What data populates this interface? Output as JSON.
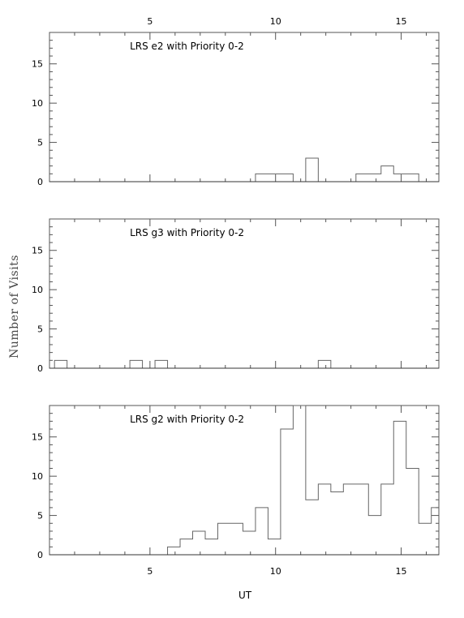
{
  "chart_data": [
    {
      "type": "histogram",
      "title": "LRS e2 with Priority 0-2",
      "xlim": [
        1,
        16.5
      ],
      "ylim": [
        0,
        19
      ],
      "xticks": [
        5,
        10,
        15
      ],
      "yticks": [
        0,
        5,
        10,
        15
      ],
      "bin_width": 0.5,
      "bins": [
        [
          9.2,
          1
        ],
        [
          9.7,
          1
        ],
        [
          10.2,
          1
        ],
        [
          11.2,
          3
        ],
        [
          13.2,
          1
        ],
        [
          13.7,
          1
        ],
        [
          14.2,
          2
        ],
        [
          14.7,
          1
        ],
        [
          15.2,
          1
        ]
      ]
    },
    {
      "type": "histogram",
      "title": "LRS g3 with Priority 0-2",
      "xlim": [
        1,
        16.5
      ],
      "ylim": [
        0,
        19
      ],
      "xticks": [
        5,
        10,
        15
      ],
      "yticks": [
        0,
        5,
        10,
        15
      ],
      "bin_width": 0.5,
      "bins": [
        [
          1.2,
          1
        ],
        [
          4.2,
          1
        ],
        [
          5.2,
          1
        ],
        [
          11.7,
          1
        ]
      ]
    },
    {
      "type": "histogram",
      "title": "LRS g2 with Priority 0-2",
      "xlim": [
        1,
        16.5
      ],
      "ylim": [
        0,
        19
      ],
      "xticks": [
        5,
        10,
        15
      ],
      "yticks": [
        0,
        5,
        10,
        15
      ],
      "bin_width": 0.5,
      "bins": [
        [
          5.7,
          1
        ],
        [
          6.2,
          2
        ],
        [
          6.7,
          3
        ],
        [
          7.2,
          2
        ],
        [
          7.7,
          4
        ],
        [
          8.2,
          4
        ],
        [
          8.7,
          3
        ],
        [
          9.2,
          6
        ],
        [
          9.7,
          2
        ],
        [
          10.2,
          16
        ],
        [
          10.7,
          20
        ],
        [
          11.2,
          7
        ],
        [
          11.7,
          9
        ],
        [
          12.2,
          8
        ],
        [
          12.7,
          9
        ],
        [
          13.2,
          9
        ],
        [
          13.7,
          5
        ],
        [
          14.2,
          9
        ],
        [
          14.7,
          17
        ],
        [
          15.2,
          11
        ],
        [
          15.7,
          4
        ],
        [
          16.2,
          6
        ]
      ]
    }
  ],
  "axes": {
    "top_ticks": [
      "5",
      "10",
      "15"
    ],
    "bottom_ticks": [
      "5",
      "10",
      "15"
    ],
    "y_ticks": [
      "0",
      "5",
      "10",
      "15"
    ],
    "xlabel": "UT",
    "ylabel": "Number of Visits"
  }
}
